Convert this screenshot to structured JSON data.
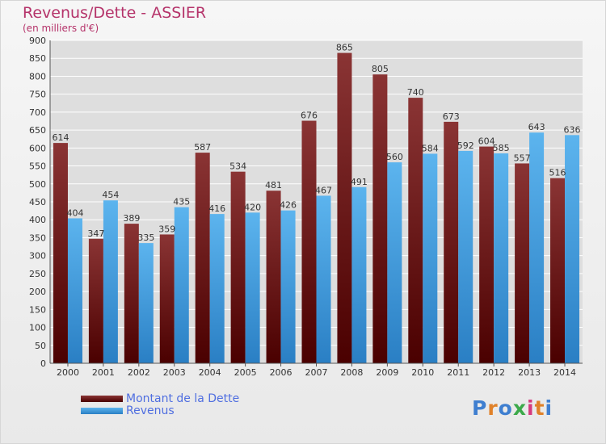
{
  "title": "Revenus/Dette - ASSIER",
  "subtitle": "(en milliers d'€)",
  "logo": {
    "text": "Proxiti",
    "colors": [
      "#3f7fd0",
      "#e0822a",
      "#3f7fd0",
      "#3ca94a",
      "#d63a7e",
      "#e0822a",
      "#3f7fd0"
    ]
  },
  "colors": {
    "debt": "#7a1f1f",
    "revenue": "#3d9ce2",
    "axis": "#555555",
    "grid": "#ffffff",
    "title": "#b5336a",
    "legend_text": "#4f6ee0"
  },
  "chart_data": {
    "type": "bar",
    "title": "Revenus/Dette - ASSIER",
    "ylabel": "(en milliers d'€)",
    "xlabel": "",
    "categories": [
      "2000",
      "2001",
      "2002",
      "2003",
      "2004",
      "2005",
      "2006",
      "2007",
      "2008",
      "2009",
      "2010",
      "2011",
      "2012",
      "2013",
      "2014"
    ],
    "series": [
      {
        "name": "Montant de la Dette",
        "values": [
          614,
          347,
          389,
          359,
          587,
          534,
          481,
          676,
          865,
          805,
          740,
          673,
          604,
          557,
          516
        ]
      },
      {
        "name": "Revenus",
        "values": [
          404,
          454,
          335,
          435,
          416,
          420,
          426,
          467,
          491,
          560,
          584,
          592,
          585,
          643,
          636
        ]
      }
    ],
    "ylim": [
      0,
      900
    ],
    "yticks": [
      0,
      50,
      100,
      150,
      200,
      250,
      300,
      350,
      400,
      450,
      500,
      550,
      600,
      650,
      700,
      750,
      800,
      850,
      900
    ],
    "grid": true,
    "legend": "bottom-left"
  }
}
